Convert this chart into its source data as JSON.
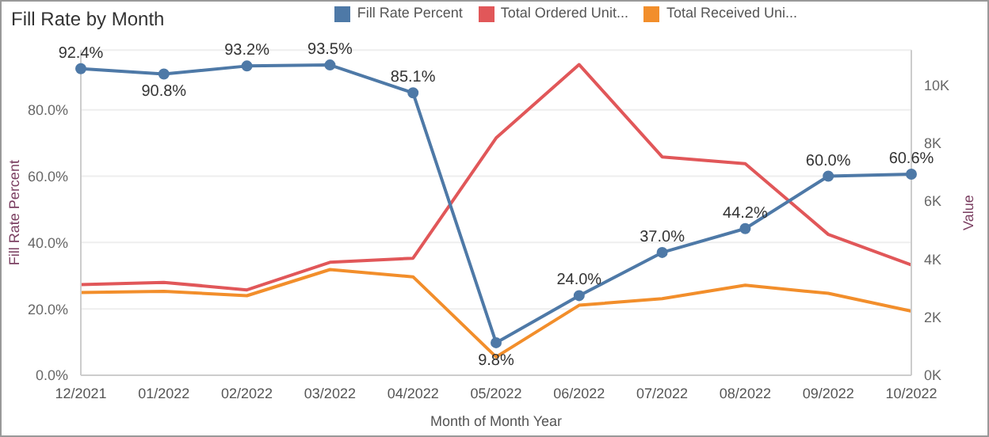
{
  "chart_data": {
    "type": "line",
    "title": "Fill Rate by Month",
    "xlabel": "Month of Month Year",
    "ylabel": "Fill Rate Percent",
    "y2label": "Value",
    "categories": [
      "12/2021",
      "01/2022",
      "02/2022",
      "03/2022",
      "04/2022",
      "05/2022",
      "06/2022",
      "07/2022",
      "08/2022",
      "09/2022",
      "10/2022"
    ],
    "series": [
      {
        "name": "Total Ordered Unit...",
        "color": "#e15759",
        "axis": "y2",
        "marker": "none",
        "values": [
          3120,
          3200,
          2940,
          3890,
          4030,
          8170,
          10700,
          7520,
          7290,
          4850,
          3800
        ]
      },
      {
        "name": "Total Received Uni...",
        "color": "#f28e2b",
        "axis": "y2",
        "marker": "none",
        "values": [
          2850,
          2890,
          2740,
          3640,
          3390,
          630,
          2410,
          2640,
          3100,
          2820,
          2210
        ]
      },
      {
        "name": "Fill Rate Percent",
        "color": "#4e79a7",
        "axis": "y",
        "marker": "circle",
        "values": [
          92.4,
          90.8,
          93.2,
          93.5,
          85.1,
          9.8,
          24.0,
          37.0,
          44.2,
          60.0,
          60.6
        ],
        "value_labels": [
          "92.4%",
          "90.8%",
          "93.2%",
          "93.5%",
          "85.1%",
          "9.8%",
          "24.0%",
          "37.0%",
          "44.2%",
          "60.0%",
          "60.6%"
        ]
      }
    ],
    "ylim": [
      0,
      98
    ],
    "yticks": [
      {
        "value": 0,
        "label": "0.0%"
      },
      {
        "value": 20,
        "label": "20.0%"
      },
      {
        "value": 40,
        "label": "40.0%"
      },
      {
        "value": 60,
        "label": "60.0%"
      },
      {
        "value": 80,
        "label": "80.0%"
      }
    ],
    "y2lim": [
      0,
      11200
    ],
    "y2ticks": [
      {
        "value": 0,
        "label": "0K"
      },
      {
        "value": 2000,
        "label": "2K"
      },
      {
        "value": 4000,
        "label": "4K"
      },
      {
        "value": 6000,
        "label": "6K"
      },
      {
        "value": 8000,
        "label": "8K"
      },
      {
        "value": 10000,
        "label": "10K"
      }
    ],
    "grid": "y",
    "legend": "top right"
  }
}
